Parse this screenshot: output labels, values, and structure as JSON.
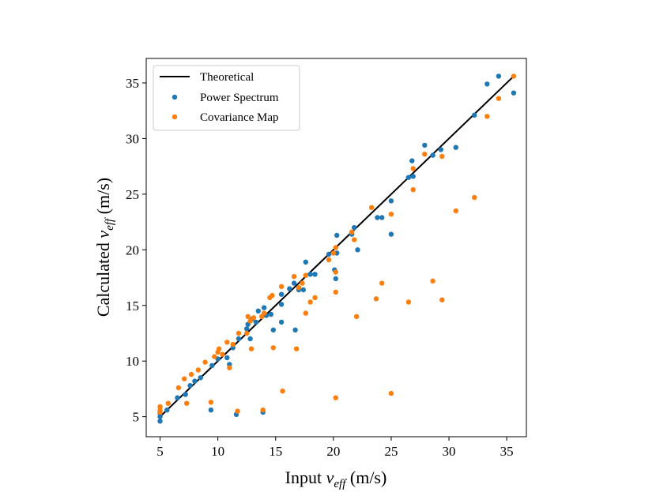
{
  "chart_data": {
    "type": "scatter",
    "title": "",
    "xlabel": "Input v_eff (m/s)",
    "ylabel": "Calculated v_eff (m/s)",
    "xlabel_parts": {
      "prefix": "Input ",
      "var": "v",
      "sub": "eff",
      "suffix": " (m/s)"
    },
    "ylabel_parts": {
      "prefix": "Calculated ",
      "var": "v",
      "sub": "eff",
      "suffix": " (m/s)"
    },
    "xlim": [
      3.8,
      36.7
    ],
    "ylim": [
      3.2,
      37.2
    ],
    "xticks": [
      5,
      10,
      15,
      20,
      25,
      30,
      35
    ],
    "yticks": [
      5,
      10,
      15,
      20,
      25,
      30,
      35
    ],
    "xtick_labels": [
      "5",
      "10",
      "15",
      "20",
      "25",
      "30",
      "35"
    ],
    "ytick_labels": [
      "5",
      "10",
      "15",
      "20",
      "25",
      "30",
      "35"
    ],
    "grid": false,
    "legend_position": "top-left",
    "line": {
      "name": "Theoretical",
      "x": [
        5,
        35.5
      ],
      "y": [
        5,
        35.5
      ],
      "color": "#000000"
    },
    "series": [
      {
        "name": "Power Spectrum",
        "color": "#1f77b4",
        "points": [
          [
            5,
            4.6
          ],
          [
            5,
            5.0
          ],
          [
            5,
            5.3
          ],
          [
            5.6,
            5.6
          ],
          [
            6.5,
            6.7
          ],
          [
            7.2,
            7.0
          ],
          [
            7.6,
            7.8
          ],
          [
            8.0,
            8.2
          ],
          [
            8.5,
            8.5
          ],
          [
            9.4,
            5.6
          ],
          [
            9.5,
            9.6
          ],
          [
            10.0,
            10.2
          ],
          [
            10.8,
            10.3
          ],
          [
            11.0,
            9.7
          ],
          [
            11.3,
            11.2
          ],
          [
            11.6,
            5.2
          ],
          [
            11.8,
            12.0
          ],
          [
            12.5,
            12.9
          ],
          [
            12.6,
            13.3
          ],
          [
            12.8,
            12.0
          ],
          [
            13.0,
            13.8
          ],
          [
            13.3,
            13.5
          ],
          [
            13.5,
            14.5
          ],
          [
            13.9,
            5.4
          ],
          [
            14.0,
            14.8
          ],
          [
            14.2,
            14.1
          ],
          [
            14.6,
            14.2
          ],
          [
            14.8,
            12.8
          ],
          [
            15.5,
            15.1
          ],
          [
            15.5,
            16.0
          ],
          [
            15.5,
            13.5
          ],
          [
            16.2,
            16.5
          ],
          [
            16.6,
            17.0
          ],
          [
            16.7,
            12.8
          ],
          [
            17.0,
            16.4
          ],
          [
            17.4,
            16.4
          ],
          [
            17.6,
            18.9
          ],
          [
            18.0,
            17.8
          ],
          [
            18.4,
            17.8
          ],
          [
            19.6,
            19.6
          ],
          [
            20.1,
            18.2
          ],
          [
            20.2,
            17.4
          ],
          [
            20.3,
            19.7
          ],
          [
            20.3,
            21.3
          ],
          [
            21.6,
            21.4
          ],
          [
            21.8,
            22.0
          ],
          [
            22.1,
            20.0
          ],
          [
            23.8,
            22.9
          ],
          [
            24.2,
            22.9
          ],
          [
            25.0,
            24.4
          ],
          [
            25.0,
            21.4
          ],
          [
            26.5,
            26.5
          ],
          [
            26.8,
            28.0
          ],
          [
            26.9,
            26.6
          ],
          [
            27.9,
            29.4
          ],
          [
            28.6,
            28.5
          ],
          [
            29.3,
            29.0
          ],
          [
            30.6,
            29.2
          ],
          [
            32.2,
            32.1
          ],
          [
            33.3,
            34.9
          ],
          [
            34.3,
            35.6
          ],
          [
            35.6,
            34.1
          ]
        ]
      },
      {
        "name": "Covariance Map",
        "color": "#ff7f0e",
        "points": [
          [
            5,
            5.4
          ],
          [
            5,
            5.9
          ],
          [
            5,
            5.6
          ],
          [
            5.7,
            6.2
          ],
          [
            6.6,
            7.6
          ],
          [
            7.1,
            8.4
          ],
          [
            7.3,
            6.2
          ],
          [
            7.7,
            8.8
          ],
          [
            8.3,
            9.2
          ],
          [
            8.9,
            9.9
          ],
          [
            9.4,
            6.3
          ],
          [
            9.7,
            10.4
          ],
          [
            10.0,
            10.8
          ],
          [
            10.1,
            11.1
          ],
          [
            10.4,
            10.6
          ],
          [
            10.8,
            11.7
          ],
          [
            11.0,
            9.4
          ],
          [
            11.3,
            11.5
          ],
          [
            11.7,
            5.5
          ],
          [
            11.8,
            12.5
          ],
          [
            12.5,
            12.5
          ],
          [
            12.6,
            14.0
          ],
          [
            12.8,
            13.6
          ],
          [
            12.9,
            11.1
          ],
          [
            13.1,
            13.9
          ],
          [
            13.8,
            14.0
          ],
          [
            13.9,
            5.6
          ],
          [
            14.0,
            14.3
          ],
          [
            14.5,
            15.7
          ],
          [
            14.7,
            15.9
          ],
          [
            14.8,
            11.2
          ],
          [
            15.5,
            16.7
          ],
          [
            15.6,
            7.3
          ],
          [
            16.6,
            17.6
          ],
          [
            16.8,
            11.1
          ],
          [
            17.0,
            16.6
          ],
          [
            17.3,
            17.0
          ],
          [
            17.6,
            17.7
          ],
          [
            17.6,
            14.3
          ],
          [
            18.0,
            15.3
          ],
          [
            18.4,
            15.7
          ],
          [
            19.6,
            19.1
          ],
          [
            20.0,
            19.7
          ],
          [
            20.2,
            20.2
          ],
          [
            20.2,
            18.0
          ],
          [
            20.2,
            6.7
          ],
          [
            20.2,
            16.2
          ],
          [
            21.6,
            21.6
          ],
          [
            21.8,
            20.9
          ],
          [
            22.0,
            14.0
          ],
          [
            23.3,
            23.8
          ],
          [
            23.7,
            15.6
          ],
          [
            24.2,
            17.0
          ],
          [
            25.0,
            23.2
          ],
          [
            25.0,
            7.1
          ],
          [
            26.5,
            15.3
          ],
          [
            26.9,
            27.3
          ],
          [
            26.9,
            25.4
          ],
          [
            27.9,
            28.6
          ],
          [
            28.6,
            17.2
          ],
          [
            29.4,
            15.5
          ],
          [
            29.4,
            28.4
          ],
          [
            30.6,
            23.5
          ],
          [
            32.2,
            24.7
          ],
          [
            33.3,
            32.0
          ],
          [
            34.3,
            33.6
          ],
          [
            35.6,
            35.6
          ]
        ]
      }
    ]
  }
}
